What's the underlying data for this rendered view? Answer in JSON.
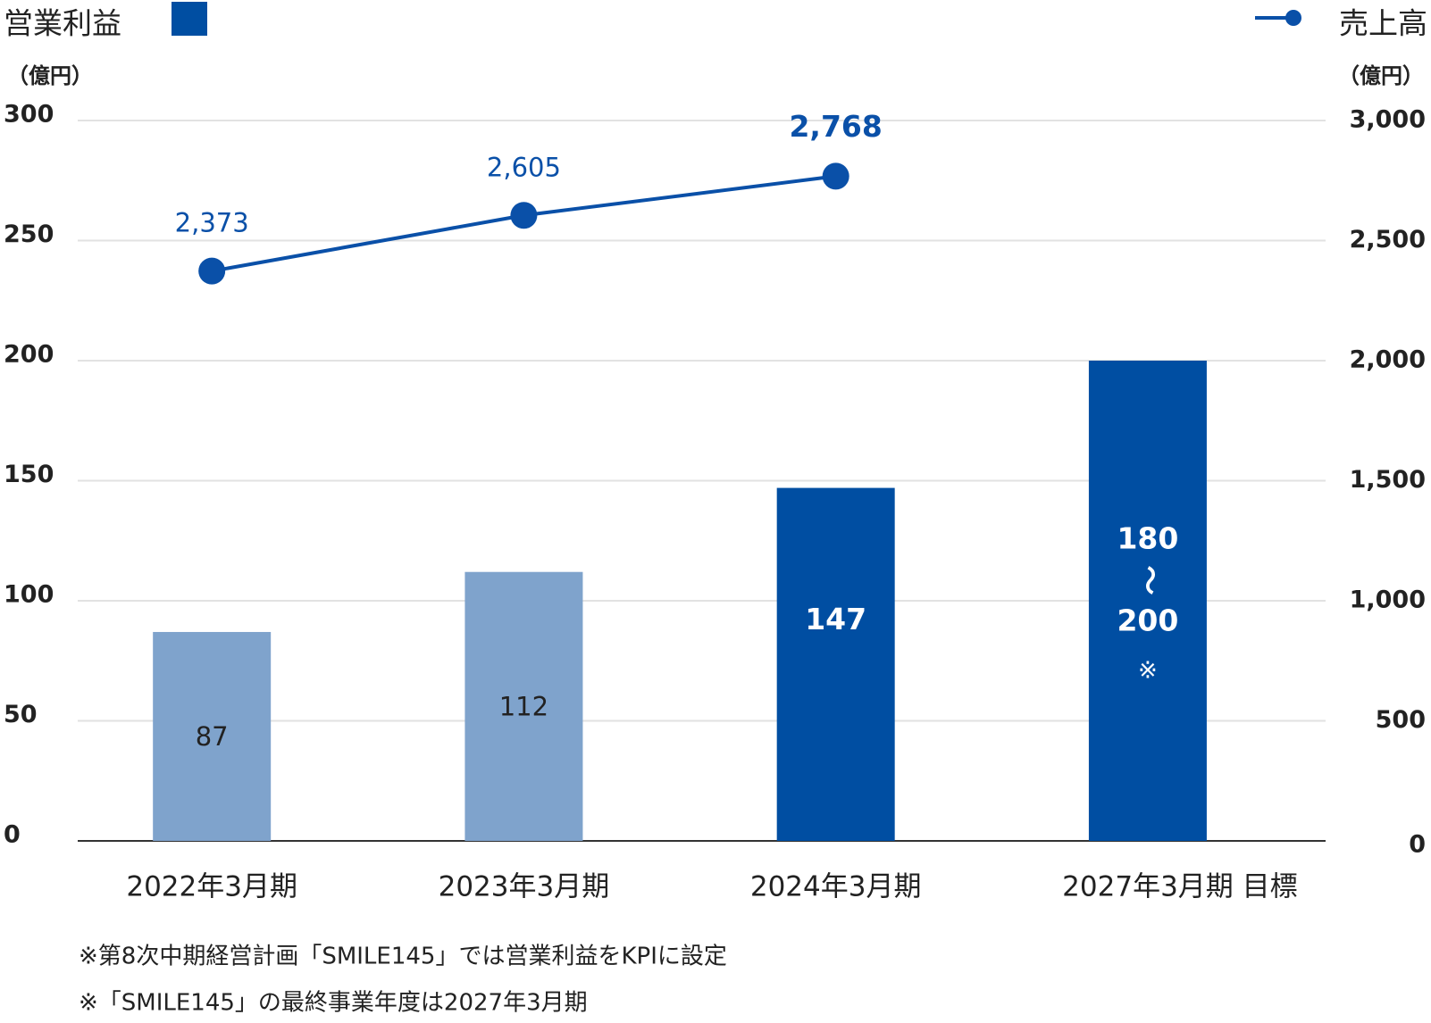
{
  "chart_data": {
    "type": "bar",
    "title": "営業利益",
    "title_right": "売上高",
    "y_unit": "（億円）",
    "y2_unit": "（億円）",
    "categories": [
      "2022年3月期",
      "2023年3月期",
      "2024年3月期",
      "2027年3月期 目標"
    ],
    "values": [
      87,
      112,
      147,
      200
    ],
    "colors": [
      "#7fa3cc",
      "#7fa3cc",
      "#004ea2",
      "#004ea2"
    ],
    "color": "#004ea2",
    "target_range": {
      "low": 180,
      "high": 200,
      "separator": "〜",
      "note": "※"
    },
    "series": [
      {
        "name": "売上高",
        "type": "line",
        "axis": "y2",
        "color": "#0a50a8",
        "values": [
          2373,
          2605,
          2768,
          null
        ],
        "value_labels": [
          "2,373",
          "2,605",
          "2,768",
          null
        ]
      }
    ],
    "ylim": [
      0,
      300
    ],
    "yticks": [
      0,
      50,
      100,
      150,
      200,
      250,
      300
    ],
    "y2lim": [
      0,
      3000
    ],
    "y2ticks": [
      0,
      500,
      {
        "value": 1000,
        "label": "1,000"
      },
      {
        "value": 1500,
        "label": "1,500"
      },
      {
        "value": 2000,
        "label": "2,000"
      },
      {
        "value": 2500,
        "label": "2,500"
      },
      {
        "value": 3000,
        "label": "3,000"
      }
    ],
    "grid": true,
    "footnotes": [
      "※第8次中期経営計画「SMILE145」では営業利益をKPIに設定",
      "※「SMILE145」の最終事業年度は2027年3月期"
    ]
  }
}
